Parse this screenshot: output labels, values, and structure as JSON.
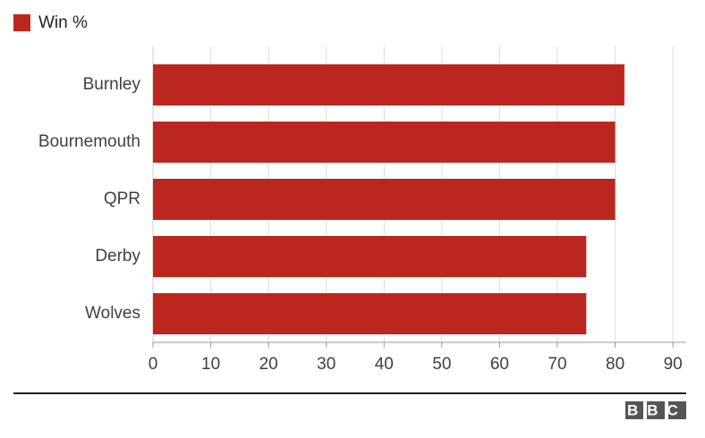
{
  "chart_data": {
    "type": "bar",
    "orientation": "horizontal",
    "categories": [
      "Burnley",
      "Bournemouth",
      "QPR",
      "Derby",
      "Wolves"
    ],
    "series": [
      {
        "name": "Win %",
        "color": "#bb271f",
        "values": [
          81.6,
          80,
          80,
          75,
          75
        ]
      }
    ],
    "xlim": [
      0,
      92.3
    ],
    "xticks": [
      0,
      10,
      20,
      30,
      40,
      50,
      60,
      70,
      80,
      90
    ],
    "grid": true,
    "legend": "top-left",
    "logo": "BBC"
  }
}
